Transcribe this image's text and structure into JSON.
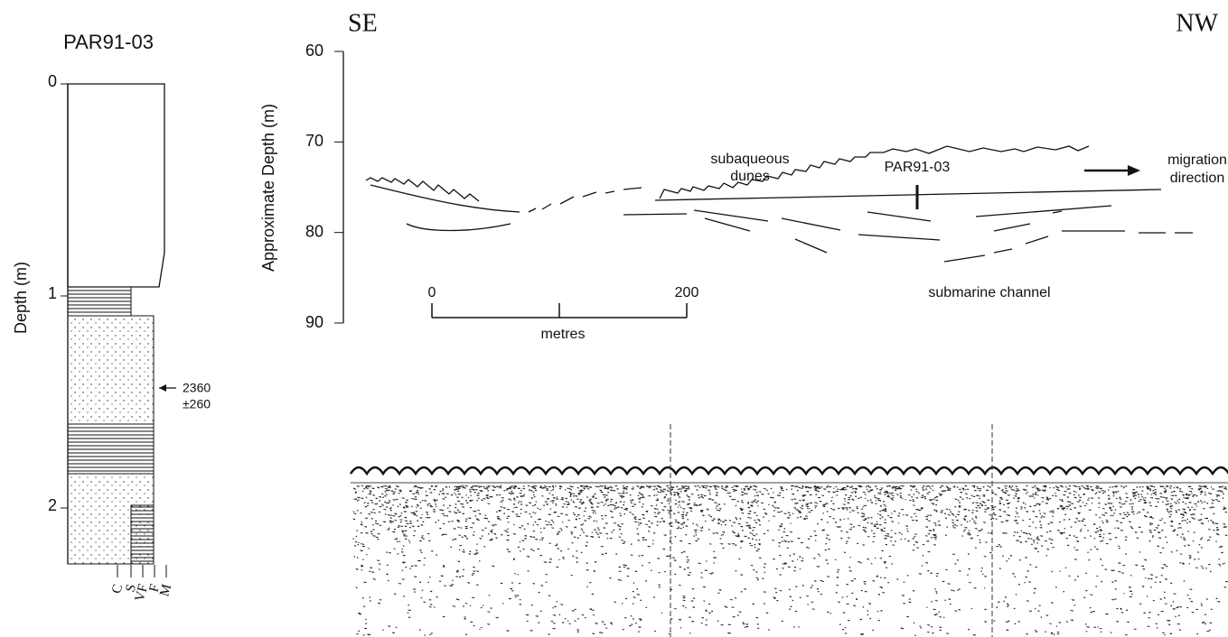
{
  "left_log": {
    "title": "PAR91-03",
    "axis_label": "Depth (m)",
    "ticks": [
      0,
      1,
      2
    ],
    "date": {
      "value": 2360,
      "error": "±260"
    },
    "grain_sizes": [
      "C",
      "S",
      "VF",
      "F",
      "M"
    ]
  },
  "profile": {
    "left_label": "SE",
    "right_label": "NW",
    "axis_label": "Approximate Depth (m)",
    "ticks": [
      60,
      70,
      80,
      90
    ],
    "annotations": {
      "dunes": [
        "subaqueous",
        "dunes"
      ],
      "core": "PAR91-03",
      "migration": [
        "migration",
        "direction"
      ],
      "channel": "submarine channel"
    },
    "scale_bar": {
      "ticks": [
        0,
        200
      ],
      "unit": "metres"
    }
  }
}
